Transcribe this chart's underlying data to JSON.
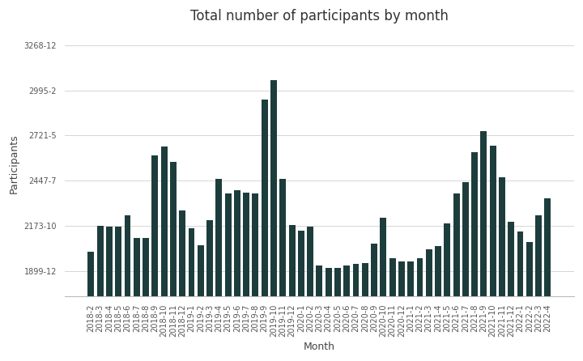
{
  "title": "Total number of participants by month",
  "xlabel": "Month",
  "ylabel": "Participants",
  "bar_color": "#1d3d3d",
  "background_color": "#ffffff",
  "ytick_labels": [
    "1899-12",
    "2173-10",
    "2447-7",
    "2721-5",
    "2995-2",
    "3268-12"
  ],
  "ytick_values": [
    1900,
    2174,
    2448,
    2722,
    2995,
    3269
  ],
  "ylim_min": 1750,
  "ylim_max": 3350,
  "categories": [
    "2018-2",
    "2018-3",
    "2018-4",
    "2018-5",
    "2018-6",
    "2018-7",
    "2018-8",
    "2018-9",
    "2018-10",
    "2018-11",
    "2018-12",
    "2019-1",
    "2019-2",
    "2019-3",
    "2019-4",
    "2019-5",
    "2019-6",
    "2019-7",
    "2019-8",
    "2019-9",
    "2019-10",
    "2019-11",
    "2019-12",
    "2020-1",
    "2020-2",
    "2020-3",
    "2020-4",
    "2020-5",
    "2020-6",
    "2020-7",
    "2020-8",
    "2020-9",
    "2020-10",
    "2020-11",
    "2020-12",
    "2021-1",
    "2021-2",
    "2021-3",
    "2021-4",
    "2021-5",
    "2021-6",
    "2021-7",
    "2021-8",
    "2021-9",
    "2021-10",
    "2021-11",
    "2021-12",
    "2022-1",
    "2022-2",
    "2022-3",
    "2022-4"
  ],
  "values": [
    2020,
    2175,
    2170,
    2170,
    2240,
    2100,
    2100,
    2600,
    2655,
    2560,
    2270,
    2160,
    2060,
    2210,
    2460,
    2370,
    2390,
    2375,
    2370,
    2940,
    3055,
    2460,
    2180,
    2145,
    2170,
    1935,
    1920,
    1920,
    1935,
    1945,
    1950,
    2070,
    2225,
    1980,
    1960,
    1960,
    1980,
    2035,
    2055,
    2190,
    2370,
    2440,
    2620,
    2750,
    2660,
    2470,
    2200,
    2140,
    2080,
    2240,
    2340
  ],
  "figsize": [
    7.2,
    4.46
  ],
  "dpi": 100,
  "title_fontsize": 12,
  "axis_fontsize": 9,
  "tick_fontsize": 7,
  "grid_color": "#d5d5d5",
  "grid_linewidth": 0.7
}
